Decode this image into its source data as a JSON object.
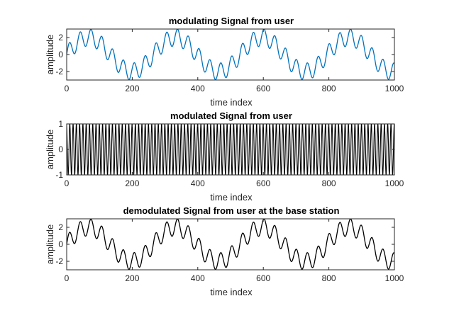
{
  "chart_data": [
    {
      "type": "line",
      "title": "modulating Signal from user",
      "xlabel": "time index",
      "ylabel": "amplitude",
      "xlim": [
        0,
        1000
      ],
      "ylim": [
        -3,
        3
      ],
      "xticks": [
        "0",
        "200",
        "400",
        "600",
        "800",
        "1000"
      ],
      "yticks": [
        "-2",
        "0",
        "2"
      ],
      "grid": false,
      "color": "#0072bd",
      "series": [
        {
          "signal": "2*sin(2*pi*x/265) + 1*sin(2*pi*x/33)",
          "x": [
            0,
            50,
            100,
            150,
            200,
            250,
            300,
            350,
            400,
            450,
            500,
            550,
            600,
            650,
            700,
            750,
            800,
            850,
            900,
            950,
            1000
          ],
          "values": [
            0.0,
            2.9,
            1.5,
            -0.4,
            -2.1,
            -1.4,
            2.6,
            1.2,
            -2.0,
            -2.4,
            0.7,
            2.6,
            0.3,
            -1.5,
            -2.5,
            0.6,
            2.8,
            1.0,
            -2.1,
            -1.6,
            1.4
          ]
        }
      ]
    },
    {
      "type": "line",
      "title": "modulated Signal from user",
      "xlabel": "time index",
      "ylabel": "amplitude",
      "xlim": [
        0,
        1000
      ],
      "ylim": [
        -1,
        1
      ],
      "xticks": [
        "0",
        "200",
        "400",
        "600",
        "800",
        "1000"
      ],
      "yticks": [
        "-1",
        "0",
        "1"
      ],
      "grid": false,
      "color": "#000000",
      "series": [
        {
          "signal": "cos(2*pi*x/10 + phase)",
          "x": [
            0,
            250,
            500,
            750,
            1000
          ],
          "values": [
            1,
            1,
            1,
            1,
            1
          ]
        }
      ]
    },
    {
      "type": "line",
      "title": "demodulated Signal from user at the base station",
      "xlabel": "time index",
      "ylabel": "amplitude",
      "xlim": [
        0,
        1000
      ],
      "ylim": [
        -3,
        3
      ],
      "xticks": [
        "0",
        "200",
        "400",
        "600",
        "800",
        "1000"
      ],
      "yticks": [
        "-2",
        "0",
        "2"
      ],
      "grid": false,
      "color": "#000000",
      "series": [
        {
          "signal": "2*sin(2*pi*x/265) + 1*sin(2*pi*x/33)",
          "x": [
            0,
            50,
            100,
            150,
            200,
            250,
            300,
            350,
            400,
            450,
            500,
            550,
            600,
            650,
            700,
            750,
            800,
            850,
            900,
            950,
            1000
          ],
          "values": [
            0.0,
            2.9,
            1.5,
            -0.4,
            -2.1,
            -1.4,
            2.6,
            1.2,
            -2.0,
            -2.4,
            0.7,
            2.6,
            0.3,
            -1.5,
            -2.5,
            0.6,
            2.8,
            1.0,
            -2.1,
            -1.6,
            1.4
          ]
        }
      ]
    }
  ]
}
